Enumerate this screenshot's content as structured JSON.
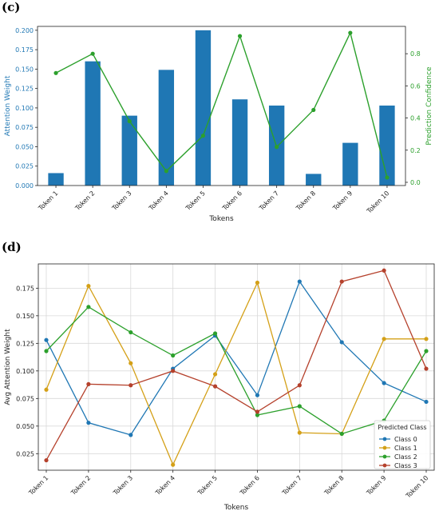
{
  "panels": {
    "c_label": "(c)",
    "d_label": "(d)"
  },
  "colors": {
    "bar": "#1f77b4",
    "confidence": "#2ca02c",
    "class_colors": [
      "#1f77b4",
      "#d4a017",
      "#2ca02c",
      "#b5412c"
    ]
  },
  "chart_data": [
    {
      "type": "bar",
      "categories": [
        "Token 1",
        "Token 2",
        "Token 3",
        "Token 4",
        "Token 5",
        "Token 6",
        "Token 7",
        "Token 8",
        "Token 9",
        "Token 10"
      ],
      "xlabel": "Tokens",
      "ylabel": "Attention Weight",
      "ylim": [
        0,
        0.205
      ],
      "yticks": [
        "0.000",
        "0.025",
        "0.050",
        "0.075",
        "0.100",
        "0.125",
        "0.150",
        "0.175",
        "0.200"
      ],
      "values": [
        0.016,
        0.16,
        0.09,
        0.149,
        0.2,
        0.111,
        0.103,
        0.015,
        0.055,
        0.103
      ],
      "secondary": {
        "type": "line",
        "ylabel": "Prediction Confidence",
        "ylim": [
          -0.02,
          0.97
        ],
        "yticks": [
          "0.0",
          "0.2",
          "0.4",
          "0.6",
          "0.8"
        ],
        "values": [
          0.68,
          0.8,
          0.38,
          0.07,
          0.29,
          0.91,
          0.22,
          0.45,
          0.93,
          0.03
        ]
      },
      "grid": false
    },
    {
      "type": "line",
      "categories": [
        "Token 1",
        "Token 2",
        "Token 3",
        "Token 4",
        "Token 5",
        "Token 6",
        "Token 7",
        "Token 8",
        "Token 9",
        "Token 10"
      ],
      "xlabel": "Tokens",
      "ylabel": "Avg Attention Weight",
      "ylim": [
        0.01,
        0.197
      ],
      "yticks": [
        "0.025",
        "0.050",
        "0.075",
        "0.100",
        "0.125",
        "0.150",
        "0.175"
      ],
      "grid": true,
      "legend_title": "Predicted Class",
      "legend_position": "bottom-right",
      "series": [
        {
          "name": "Class 0",
          "values": [
            0.128,
            0.053,
            0.042,
            0.102,
            0.132,
            0.078,
            0.181,
            0.126,
            0.089,
            0.072
          ]
        },
        {
          "name": "Class 1",
          "values": [
            0.083,
            0.177,
            0.107,
            0.015,
            0.097,
            0.18,
            0.044,
            0.043,
            0.129,
            0.129
          ]
        },
        {
          "name": "Class 2",
          "values": [
            0.118,
            0.158,
            0.135,
            0.114,
            0.134,
            0.06,
            0.068,
            0.043,
            0.055,
            0.118
          ]
        },
        {
          "name": "Class 3",
          "values": [
            0.019,
            0.088,
            0.087,
            0.1,
            0.086,
            0.063,
            0.087,
            0.181,
            0.191,
            0.102
          ]
        }
      ]
    }
  ]
}
